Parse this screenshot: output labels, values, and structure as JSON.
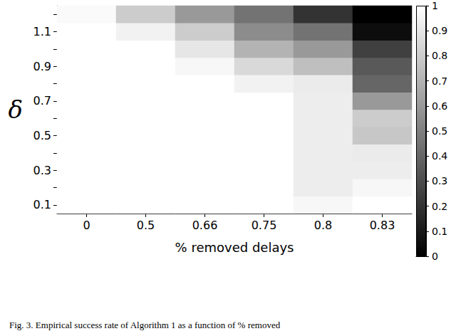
{
  "chart_data": {
    "type": "heatmap",
    "caption": "Fig. 3. Empirical success rate of Algorithm 1 as a function of % removed",
    "x_label": "% removed delays",
    "y_label": "δ",
    "categories": [
      "0",
      "0.5",
      "0.66",
      "0.75",
      "0.8",
      "0.83"
    ],
    "y_categories": [
      "0.1",
      null,
      "0.3",
      null,
      "0.5",
      null,
      "0.7",
      null,
      "0.9",
      null,
      "1.1",
      null
    ],
    "cells": [
      [
        1,
        1,
        1,
        1,
        0.97,
        1
      ],
      [
        1,
        1,
        1,
        1,
        0.93,
        0.97
      ],
      [
        1,
        1,
        1,
        1,
        0.93,
        0.93
      ],
      [
        1,
        1,
        1,
        1,
        0.93,
        0.92
      ],
      [
        1,
        1,
        1,
        1,
        0.93,
        0.78
      ],
      [
        1,
        1,
        1,
        1,
        0.93,
        0.8
      ],
      [
        1,
        1,
        1,
        1,
        0.93,
        0.6
      ],
      [
        1,
        1,
        1,
        0.95,
        0.92,
        0.4
      ],
      [
        1,
        1,
        0.97,
        0.85,
        0.75,
        0.35
      ],
      [
        1,
        1,
        0.9,
        0.7,
        0.6,
        0.25
      ],
      [
        1,
        0.95,
        0.8,
        0.55,
        0.45,
        0.05
      ],
      [
        0.98,
        0.8,
        0.6,
        0.45,
        0.2,
        0
      ]
    ],
    "colorbar": {
      "range": [
        0,
        1
      ],
      "ticks": [
        0,
        0.1,
        0.2,
        0.3,
        0.4,
        0.5,
        0.6,
        0.7,
        0.8,
        0.9,
        1
      ]
    }
  }
}
